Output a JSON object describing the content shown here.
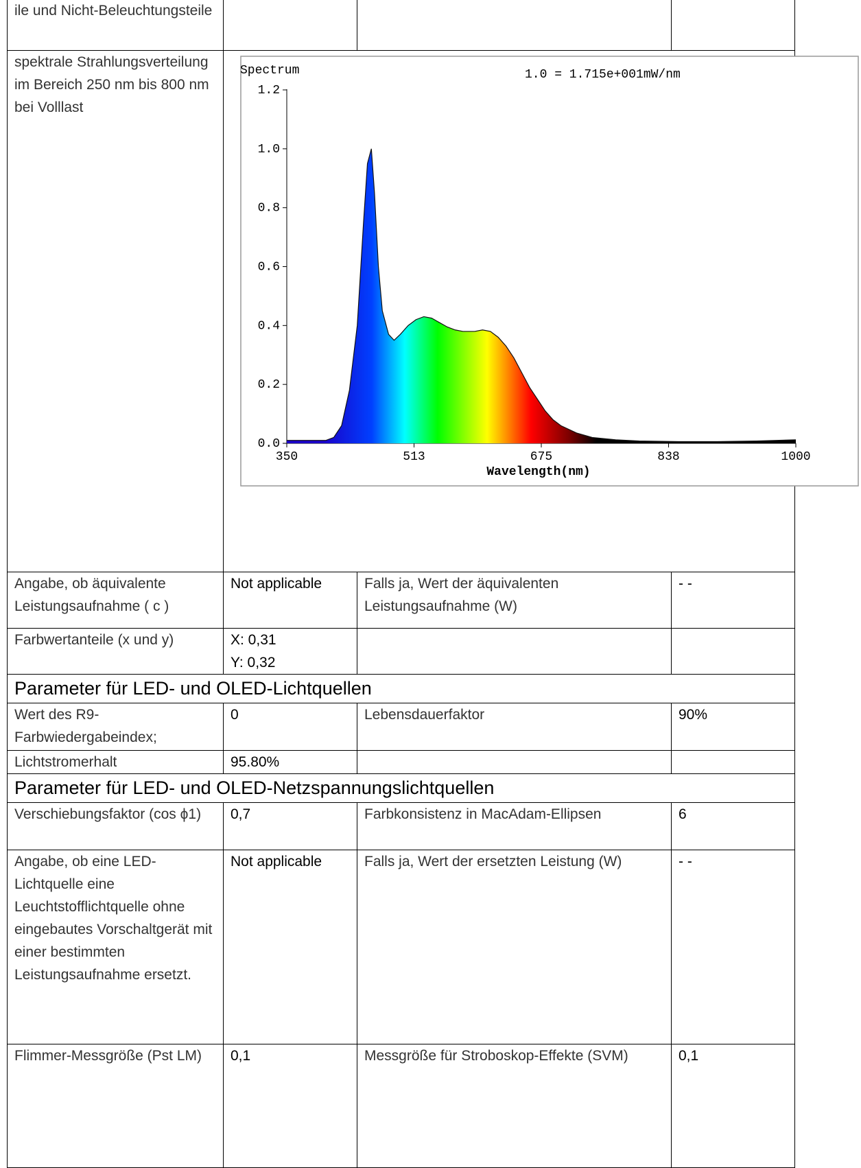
{
  "table": {
    "rows": [
      [
        "ile und Nicht-Beleuchtungsteile"
      ],
      [
        "spektrale Strahlungsverteilung im Bereich 250 nm bis 800 nm bei Volllast"
      ],
      [
        "Angabe, ob äquivalente Leistungsaufnahme ( c )",
        "Not applicable",
        "Falls ja, Wert der äquivalenten Leistungsaufnahme (W)",
        "- -"
      ],
      [
        "Farbwertanteile (x und y)",
        [
          "X: 0,31",
          "Y: 0,32"
        ]
      ],
      [
        "Parameter für LED- und OLED-Lichtquellen"
      ],
      [
        "Wert des R9-Farbwiedergabeindex;",
        "0",
        "Lebensdauerfaktor",
        "90%"
      ],
      [
        "Lichtstromerhalt",
        "95.80%"
      ],
      [
        "Parameter für LED- und OLED-Netzspannungslichtquellen"
      ],
      [
        "Verschiebungsfaktor (cos ϕ1)",
        "0,7",
        "Farbkonsistenz in MacAdam-Ellipsen",
        "6"
      ],
      [
        "Angabe, ob eine LED-Lichtquelle eine Leuchtstofflichtquelle ohne eingebautes Vorschaltgerät mit einer bestimmten Leistungsaufnahme ersetzt.",
        "Not applicable",
        "Falls ja, Wert der ersetzten Leistung (W)",
        "- -"
      ],
      [
        "Flimmer-Messgröße (Pst LM)",
        "0,1",
        "Messgröße für Stroboskop-Effekte (SVM)",
        "0,1"
      ]
    ]
  },
  "chart_data": {
    "type": "area",
    "title": "Spectrum",
    "annotation": "1.0 = 1.715e+001mW/nm",
    "x_label": "Wavelength(nm)",
    "x": [
      350,
      400,
      410,
      420,
      430,
      440,
      448,
      453,
      458,
      462,
      467,
      472,
      480,
      487,
      495,
      505,
      515,
      525,
      535,
      545,
      555,
      565,
      575,
      590,
      600,
      610,
      620,
      630,
      640,
      650,
      660,
      670,
      680,
      690,
      700,
      720,
      740,
      770,
      800,
      850,
      900,
      950,
      1000
    ],
    "values": [
      0.01,
      0.01,
      0.02,
      0.06,
      0.18,
      0.4,
      0.75,
      0.95,
      1.0,
      0.85,
      0.6,
      0.45,
      0.37,
      0.35,
      0.37,
      0.4,
      0.42,
      0.43,
      0.425,
      0.41,
      0.395,
      0.385,
      0.38,
      0.38,
      0.385,
      0.38,
      0.36,
      0.33,
      0.29,
      0.24,
      0.19,
      0.15,
      0.11,
      0.08,
      0.06,
      0.035,
      0.02,
      0.012,
      0.008,
      0.006,
      0.006,
      0.008,
      0.012
    ],
    "xlim": [
      350,
      1000
    ],
    "ylim": [
      0,
      1.2
    ],
    "xticks": [
      350,
      {
        "value": 512.5,
        "label": "513"
      },
      675,
      {
        "value": 837.5,
        "label": "838"
      },
      1000
    ],
    "yticks": [
      {
        "value": 0,
        "label": "0.0"
      },
      0.2,
      0.4,
      0.6,
      0.8,
      {
        "value": 1,
        "label": "1.0"
      },
      1.2
    ]
  }
}
